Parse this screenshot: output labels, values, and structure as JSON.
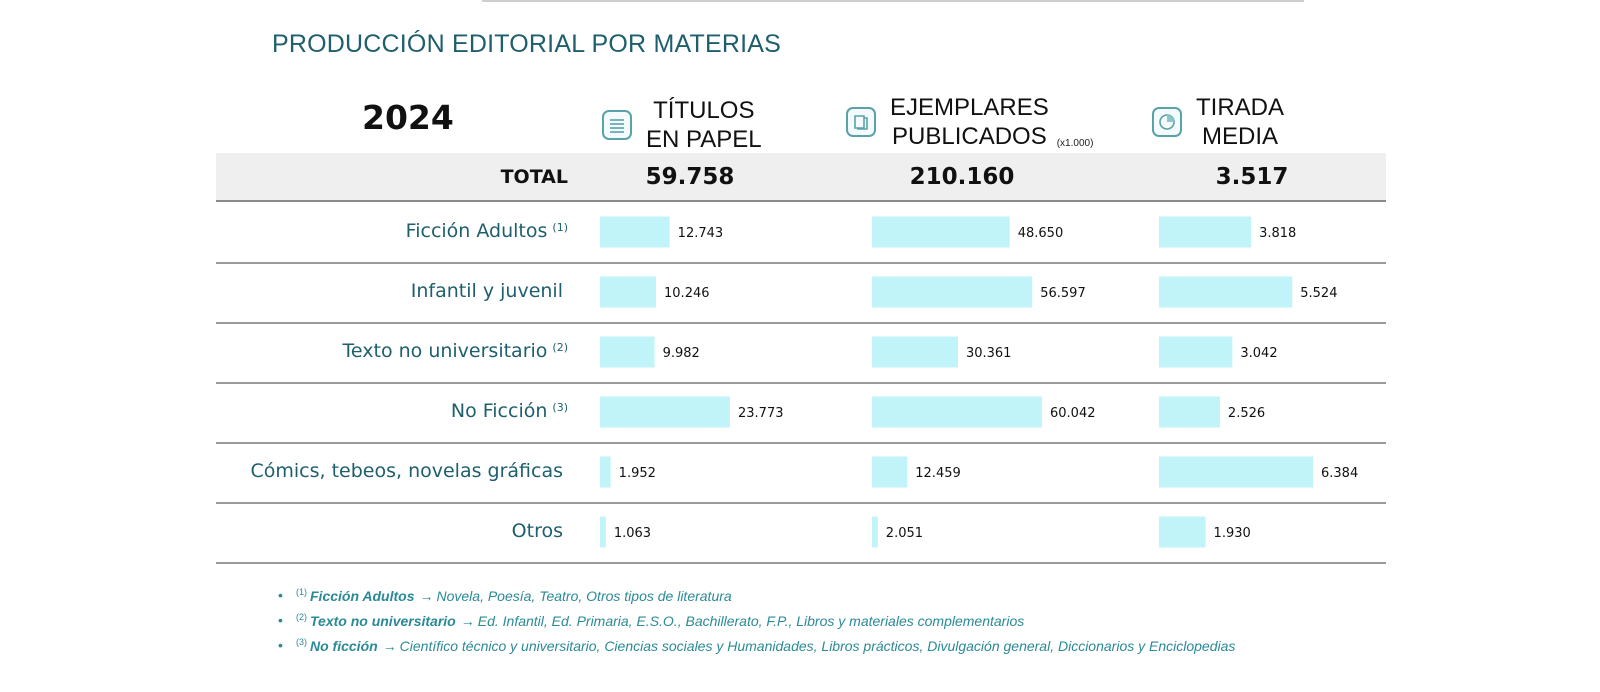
{
  "title": "PRODUCCIÓN EDITORIAL POR MATERIAS",
  "year": "2024",
  "columns": [
    {
      "key": "titulos",
      "label_line1": "TÍTULOS",
      "label_line2": "EN PAPEL",
      "unit": "",
      "icon": "books-icon"
    },
    {
      "key": "ejemplares",
      "label_line1": "EJEMPLARES",
      "label_line2": "PUBLICADOS",
      "unit": "(x1.000)",
      "icon": "book-icon"
    },
    {
      "key": "tirada",
      "label_line1": "TIRADA",
      "label_line2": "MEDIA",
      "unit": "",
      "icon": "pie-icon"
    }
  ],
  "total": {
    "label": "TOTAL",
    "values": [
      "59.758",
      "210.160",
      "3.517"
    ]
  },
  "rows": [
    {
      "label": "Ficción Adultos",
      "note": "(1)"
    },
    {
      "label": "Infantil y juvenil",
      "note": ""
    },
    {
      "label": "Texto no universitario",
      "note": "(2)"
    },
    {
      "label": "No Ficción",
      "note": "(3)"
    },
    {
      "label": "Cómics, tebeos, novelas gráficas",
      "note": ""
    },
    {
      "label": "Otros",
      "note": ""
    }
  ],
  "chart_data": {
    "type": "bar",
    "title": "PRODUCCIÓN EDITORIAL POR MATERIAS",
    "categories": [
      "Ficción Adultos",
      "Infantil y juvenil",
      "Texto no universitario",
      "No Ficción",
      "Cómics, tebeos, novelas gráficas",
      "Otros"
    ],
    "series": [
      {
        "name": "TÍTULOS EN PAPEL",
        "values": [
          12743,
          10246,
          9982,
          23773,
          1952,
          1063
        ],
        "labels": [
          "12.743",
          "10.246",
          "9.982",
          "23.773",
          "1.952",
          "1.063"
        ]
      },
      {
        "name": "EJEMPLARES PUBLICADOS (x1.000)",
        "values": [
          48650,
          56597,
          30361,
          60042,
          12459,
          2051
        ],
        "labels": [
          "48.650",
          "56.597",
          "30.361",
          "60.042",
          "12.459",
          "2.051"
        ]
      },
      {
        "name": "TIRADA MEDIA",
        "values": [
          3818,
          5524,
          3042,
          2526,
          6384,
          1930
        ],
        "labels": [
          "3.818",
          "5.524",
          "3.042",
          "2.526",
          "6.384",
          "1.930"
        ]
      }
    ],
    "bar_color": "#c0f4f9"
  },
  "notes": [
    {
      "num": "(1)",
      "term": "Ficción Adultos",
      "text": "Novela, Poesía, Teatro, Otros tipos de literatura"
    },
    {
      "num": "(2)",
      "term": "Texto no universitario",
      "text": "Ed. Infantil, Ed. Primaria, E.S.O., Bachillerato, F.P., Libros y materiales complementarios"
    },
    {
      "num": "(3)",
      "term": "No ficción",
      "text": "Científico técnico y universitario, Ciencias sociales y Humanidades, Libros prácticos, Divulgación general, Diccionarios y Enciclopedias"
    }
  ],
  "colors": {
    "title": "#1f5f6d",
    "row_label": "#1f5f6d",
    "note": "#2a8a96",
    "total_band": "#efefef",
    "bar": "#c0f4f9"
  }
}
